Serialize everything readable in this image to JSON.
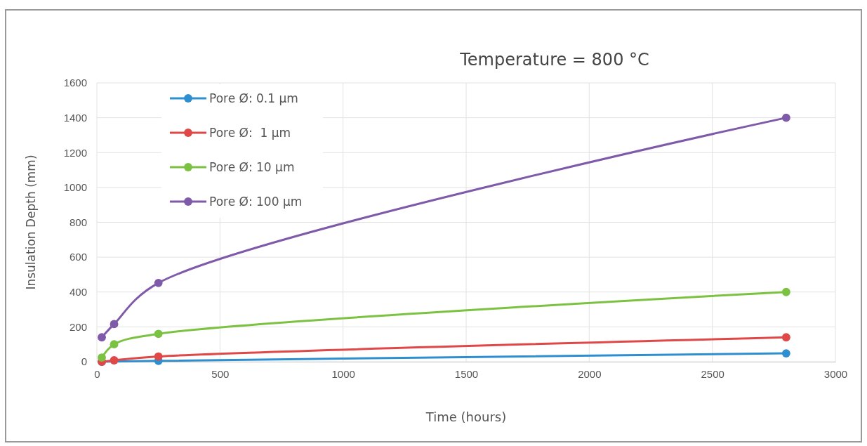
{
  "chart_data": {
    "type": "line",
    "title": "Temperature = 800 °C",
    "xlabel": "Time (hours)",
    "ylabel": "Insulation Depth (mm)",
    "x": [
      20,
      70,
      250,
      2800
    ],
    "series": [
      {
        "name": "Pore Ø: 0.1 µm",
        "color": "#2e8fd0",
        "values": [
          0,
          null,
          5,
          48
        ]
      },
      {
        "name": "Pore Ø:  1 µm",
        "color": "#e04848",
        "values": [
          0,
          8,
          30,
          140
        ]
      },
      {
        "name": "Pore Ø: 10 µm",
        "color": "#7cc242",
        "values": [
          24,
          100,
          160,
          400
        ]
      },
      {
        "name": "Pore Ø: 100 µm",
        "color": "#7f5aa8",
        "values": [
          140,
          216,
          452,
          1400
        ]
      }
    ],
    "xlim": [
      0,
      3000
    ],
    "xticks": [
      0,
      500,
      1000,
      1500,
      2000,
      2500,
      3000
    ],
    "ylim": [
      0,
      1600
    ],
    "yticks": [
      0,
      200,
      400,
      600,
      800,
      1000,
      1200,
      1400,
      1600
    ],
    "grid": true,
    "legend": "top left",
    "marker": "circle",
    "line_style": "solid"
  }
}
